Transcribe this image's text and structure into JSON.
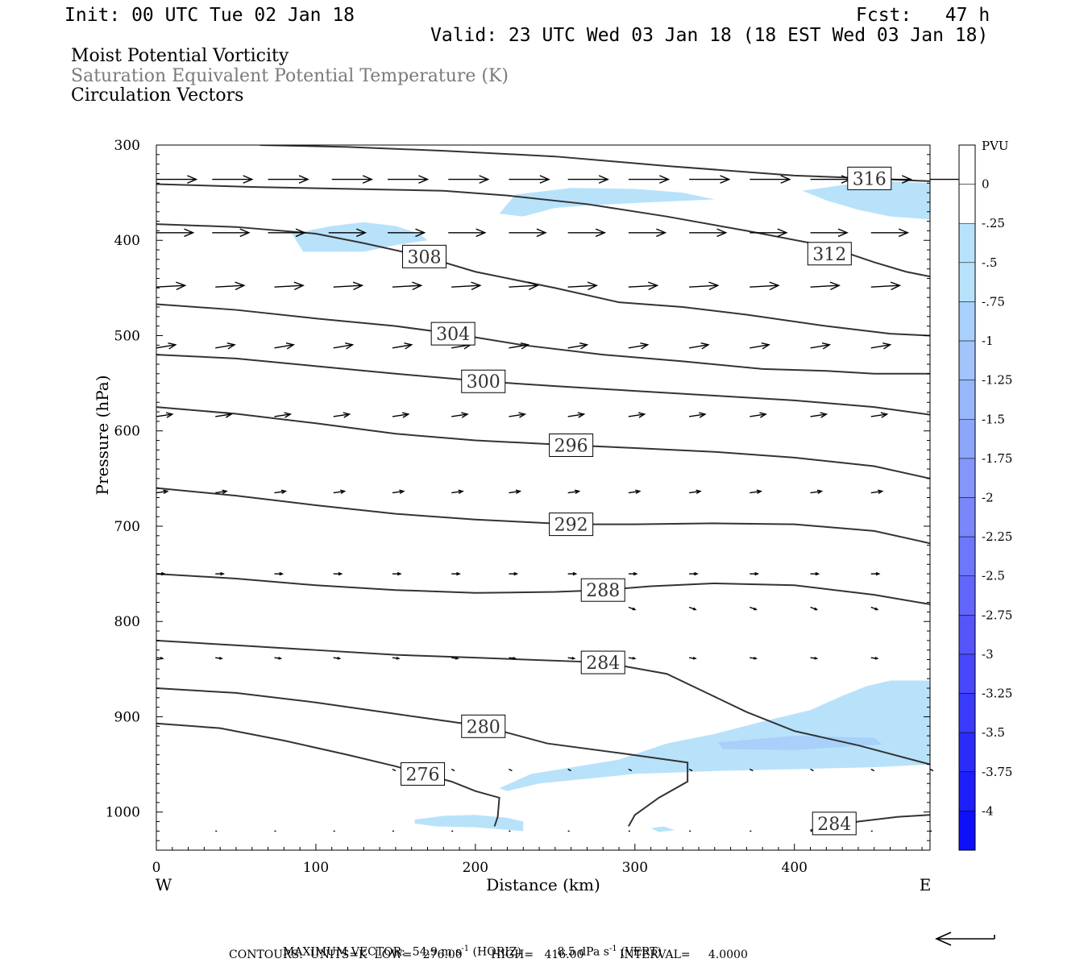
{
  "header": {
    "init": "Init: 00 UTC Tue 02 Jan 18",
    "fcst": "Fcst:   47 h",
    "valid": "Valid: 23 UTC Wed 03 Jan 18 (18 EST Wed 03 Jan 18)"
  },
  "titles": {
    "line1": "Moist Potential Vorticity",
    "line2": "Saturation Equivalent Potential Temperature (K)",
    "line3": "Circulation Vectors"
  },
  "footer": {
    "max_vector_label": "MAXIMUM VECTOR:",
    "horiz_value": "54.9",
    "horiz_unit": "m s",
    "horiz_tag": "(HORIZ)",
    "vert_value": "8.5",
    "vert_unit": "dPa s",
    "vert_tag": "(VERT)",
    "exponent": "-1",
    "contours_line": "CONTOURS:  UNITS=K  LOW=   276.00        HIGH=   416.00          INTERVAL=     4.0000"
  },
  "colors": {
    "contour": "#333333",
    "vector": "#000000",
    "pv_fill_light": "#b8e2fa",
    "pv_fill_medium": "#a8d0fa"
  },
  "chart_data": {
    "type": "contour",
    "xlabel": "Distance (km)",
    "ylabel": "Pressure (hPa)",
    "x_range": [
      0,
      485
    ],
    "y_range": [
      1040,
      300
    ],
    "x_ticks": [
      0,
      100,
      200,
      300,
      400
    ],
    "y_ticks": [
      300,
      400,
      500,
      600,
      700,
      800,
      900,
      1000
    ],
    "x_end_labels": [
      "W",
      "E"
    ],
    "contour_field": "Saturation Equivalent Potential Temperature (K)",
    "contour_lines": [
      {
        "level": 276,
        "label": "276",
        "label_pos": [
          167,
          960
        ],
        "points": [
          [
            0,
            907
          ],
          [
            40,
            912
          ],
          [
            80,
            925
          ],
          [
            120,
            940
          ],
          [
            150,
            952
          ],
          [
            167,
            960
          ],
          [
            185,
            968
          ],
          [
            200,
            978
          ],
          [
            215,
            985
          ],
          [
            214,
            1005
          ],
          [
            212,
            1015
          ]
        ]
      },
      {
        "level": 280,
        "label": "280",
        "label_pos": [
          205,
          910
        ],
        "points": [
          [
            0,
            870
          ],
          [
            50,
            875
          ],
          [
            100,
            885
          ],
          [
            150,
            897
          ],
          [
            205,
            910
          ],
          [
            245,
            928
          ],
          [
            290,
            938
          ],
          [
            333,
            948
          ],
          [
            333,
            968
          ],
          [
            315,
            985
          ],
          [
            300,
            1003
          ],
          [
            296,
            1015
          ]
        ]
      },
      {
        "level": 284,
        "label": "284",
        "label_pos": [
          280,
          843
        ],
        "points": [
          [
            0,
            820
          ],
          [
            50,
            825
          ],
          [
            100,
            830
          ],
          [
            150,
            835
          ],
          [
            200,
            838
          ],
          [
            280,
            843
          ],
          [
            320,
            855
          ],
          [
            345,
            875
          ],
          [
            370,
            895
          ],
          [
            400,
            915
          ],
          [
            440,
            930
          ],
          [
            485,
            950
          ]
        ]
      },
      {
        "level": 284,
        "label": "284",
        "label_pos": [
          425,
          1012
        ],
        "points": [
          [
            410,
            1019
          ],
          [
            440,
            1010
          ],
          [
            465,
            1005
          ],
          [
            485,
            1003
          ]
        ]
      },
      {
        "level": 288,
        "label": "288",
        "label_pos": [
          280,
          767
        ],
        "points": [
          [
            0,
            750
          ],
          [
            50,
            755
          ],
          [
            100,
            762
          ],
          [
            150,
            767
          ],
          [
            200,
            770
          ],
          [
            250,
            769
          ],
          [
            280,
            767
          ],
          [
            310,
            763
          ],
          [
            350,
            760
          ],
          [
            400,
            762
          ],
          [
            450,
            772
          ],
          [
            485,
            782
          ]
        ]
      },
      {
        "level": 292,
        "label": "292",
        "label_pos": [
          260,
          698
        ],
        "points": [
          [
            0,
            660
          ],
          [
            50,
            668
          ],
          [
            100,
            678
          ],
          [
            150,
            687
          ],
          [
            200,
            693
          ],
          [
            260,
            698
          ],
          [
            300,
            698
          ],
          [
            350,
            697
          ],
          [
            400,
            698
          ],
          [
            450,
            705
          ],
          [
            485,
            718
          ]
        ]
      },
      {
        "level": 296,
        "label": "296",
        "label_pos": [
          260,
          615
        ],
        "points": [
          [
            0,
            575
          ],
          [
            50,
            582
          ],
          [
            100,
            592
          ],
          [
            150,
            603
          ],
          [
            200,
            610
          ],
          [
            260,
            615
          ],
          [
            300,
            618
          ],
          [
            350,
            622
          ],
          [
            400,
            628
          ],
          [
            450,
            637
          ],
          [
            485,
            650
          ]
        ]
      },
      {
        "level": 300,
        "label": "300",
        "label_pos": [
          205,
          548
        ],
        "points": [
          [
            0,
            520
          ],
          [
            50,
            524
          ],
          [
            100,
            532
          ],
          [
            150,
            540
          ],
          [
            205,
            548
          ],
          [
            250,
            553
          ],
          [
            300,
            558
          ],
          [
            350,
            563
          ],
          [
            400,
            568
          ],
          [
            450,
            575
          ],
          [
            485,
            583
          ]
        ]
      },
      {
        "level": 304,
        "label": "304",
        "label_pos": [
          186,
          498
        ],
        "points": [
          [
            0,
            467
          ],
          [
            50,
            473
          ],
          [
            100,
            482
          ],
          [
            150,
            490
          ],
          [
            186,
            498
          ],
          [
            230,
            510
          ],
          [
            280,
            520
          ],
          [
            330,
            527
          ],
          [
            380,
            535
          ],
          [
            420,
            537
          ],
          [
            450,
            540
          ],
          [
            485,
            540
          ]
        ]
      },
      {
        "level": 308,
        "label": "308",
        "label_pos": [
          168,
          417
        ],
        "points": [
          [
            0,
            383
          ],
          [
            50,
            386
          ],
          [
            100,
            393
          ],
          [
            130,
            403
          ],
          [
            168,
            417
          ],
          [
            200,
            433
          ],
          [
            250,
            450
          ],
          [
            290,
            465
          ],
          [
            330,
            470
          ],
          [
            370,
            478
          ],
          [
            420,
            490
          ],
          [
            460,
            498
          ],
          [
            485,
            500
          ]
        ]
      },
      {
        "level": 312,
        "label": "312",
        "label_pos": [
          422,
          414
        ],
        "points": [
          [
            0,
            341
          ],
          [
            60,
            344
          ],
          [
            120,
            346
          ],
          [
            180,
            348
          ],
          [
            220,
            353
          ],
          [
            270,
            362
          ],
          [
            320,
            375
          ],
          [
            370,
            390
          ],
          [
            420,
            406
          ],
          [
            450,
            423
          ],
          [
            470,
            433
          ],
          [
            485,
            438
          ]
        ]
      },
      {
        "level": 316,
        "label": "316",
        "label_pos": [
          447,
          335
        ],
        "points": [
          [
            65,
            300
          ],
          [
            120,
            302
          ],
          [
            180,
            306
          ],
          [
            250,
            312
          ],
          [
            320,
            322
          ],
          [
            400,
            332
          ],
          [
            447,
            335
          ],
          [
            485,
            338
          ]
        ]
      }
    ],
    "shaded_field": "Moist Potential Vorticity (PVU)",
    "colorbar": {
      "title": "PVU",
      "levels": [
        "0",
        "-.25",
        "-.5",
        "-.75",
        "-1",
        "-1.25",
        "-1.5",
        "-1.75",
        "-2",
        "-2.25",
        "-2.5",
        "-2.75",
        "-3",
        "-3.25",
        "-3.5",
        "-3.75",
        "-4"
      ],
      "colors": [
        "#ffffff",
        "#ffffff",
        "#b8e2fa",
        "#b8e2fa",
        "#a8d0fa",
        "#a2c4fa",
        "#98b6fa",
        "#8ea6fa",
        "#8496fa",
        "#7a87fa",
        "#6e77fa",
        "#6266fa",
        "#5555fa",
        "#4848fa",
        "#3a3afa",
        "#2c2cfa",
        "#1e1efa",
        "#0f0ffa"
      ]
    },
    "pv_regions": [
      {
        "level": -0.25,
        "points": [
          [
            215,
            975
          ],
          [
            235,
            960
          ],
          [
            290,
            945
          ],
          [
            320,
            928
          ],
          [
            350,
            918
          ],
          [
            380,
            905
          ],
          [
            410,
            893
          ],
          [
            430,
            878
          ],
          [
            445,
            868
          ],
          [
            460,
            862
          ],
          [
            485,
            862
          ],
          [
            485,
            950
          ],
          [
            450,
            953
          ],
          [
            400,
            955
          ],
          [
            350,
            957
          ],
          [
            300,
            960
          ],
          [
            270,
            965
          ],
          [
            240,
            970
          ],
          [
            220,
            978
          ]
        ]
      },
      {
        "level": -0.5,
        "points": [
          [
            352,
            927
          ],
          [
            400,
            920
          ],
          [
            450,
            922
          ],
          [
            455,
            929
          ],
          [
            400,
            935
          ],
          [
            355,
            934
          ]
        ]
      },
      {
        "level": -0.25,
        "points": [
          [
            215,
            372
          ],
          [
            225,
            352
          ],
          [
            260,
            345
          ],
          [
            300,
            346
          ],
          [
            330,
            350
          ],
          [
            350,
            357
          ],
          [
            310,
            360
          ],
          [
            275,
            363
          ],
          [
            250,
            366
          ],
          [
            230,
            375
          ]
        ]
      },
      {
        "level": -0.25,
        "points": [
          [
            405,
            348
          ],
          [
            430,
            342
          ],
          [
            460,
            338
          ],
          [
            485,
            340
          ],
          [
            485,
            378
          ],
          [
            460,
            375
          ],
          [
            440,
            368
          ],
          [
            420,
            358
          ]
        ]
      },
      {
        "level": -0.25,
        "points": [
          [
            85,
            393
          ],
          [
            110,
            385
          ],
          [
            130,
            381
          ],
          [
            150,
            385
          ],
          [
            165,
            393
          ],
          [
            170,
            400
          ],
          [
            150,
            405
          ],
          [
            130,
            412
          ],
          [
            100,
            412
          ],
          [
            92,
            412
          ]
        ]
      },
      {
        "level": -0.25,
        "points": [
          [
            162,
            1008
          ],
          [
            180,
            1004
          ],
          [
            200,
            1003
          ],
          [
            220,
            1006
          ],
          [
            230,
            1010
          ],
          [
            230,
            1020
          ],
          [
            200,
            1016
          ],
          [
            175,
            1015
          ],
          [
            162,
            1012
          ]
        ]
      },
      {
        "level": -0.25,
        "points": [
          [
            310,
            1017
          ],
          [
            318,
            1015
          ],
          [
            325,
            1019
          ],
          [
            315,
            1021
          ]
        ]
      }
    ],
    "vectors": [
      {
        "p": 336,
        "len_km": 25,
        "dp": 0,
        "x": [
          0,
          35,
          70,
          110,
          145,
          183,
          221,
          258,
          296,
          334,
          372,
          410,
          448,
          485
        ]
      },
      {
        "p": 392,
        "len_km": 23,
        "dp": 0,
        "x": [
          0,
          35,
          70,
          108,
          145,
          183,
          221,
          258,
          296,
          334,
          372,
          410,
          448
        ]
      },
      {
        "p": 449,
        "len_km": 18,
        "dp": -2,
        "x": [
          0,
          37,
          74,
          111,
          148,
          185,
          221,
          258,
          296,
          334,
          372,
          410,
          448
        ]
      },
      {
        "p": 513,
        "len_km": 12,
        "dp": -4,
        "x": [
          0,
          37,
          74,
          111,
          148,
          185,
          221,
          258,
          296,
          334,
          372,
          410,
          448
        ]
      },
      {
        "p": 585,
        "len_km": 10,
        "dp": -3,
        "x": [
          0,
          37,
          74,
          111,
          148,
          185,
          221,
          258,
          296,
          334,
          372,
          410,
          448
        ]
      },
      {
        "p": 665,
        "len_km": 7,
        "dp": -2,
        "x": [
          0,
          37,
          74,
          111,
          148,
          185,
          221,
          258,
          296,
          334,
          372,
          410,
          448
        ]
      },
      {
        "p": 750,
        "len_km": 5,
        "dp": 0,
        "x": [
          0,
          37,
          74,
          111,
          148,
          185,
          221,
          258,
          296,
          334,
          372,
          410,
          448
        ]
      },
      {
        "p": 785,
        "len_km": 4,
        "dp": 3,
        "x": [
          296,
          334,
          372,
          410,
          448
        ]
      },
      {
        "p": 838,
        "len_km": 4,
        "dp": 1,
        "x": [
          0,
          37,
          74,
          111,
          148,
          185,
          221,
          258,
          296,
          334,
          372,
          410,
          448
        ]
      },
      {
        "p": 955,
        "len_km": 2,
        "dp": 2,
        "x": [
          148,
          185,
          221,
          258,
          296,
          334,
          372,
          410,
          448,
          485
        ]
      },
      {
        "p": 1020,
        "len_km": 1,
        "dp": 0,
        "x": [
          37,
          74,
          111,
          148,
          185,
          221,
          258,
          296,
          334,
          372,
          410,
          448,
          485
        ]
      }
    ]
  }
}
